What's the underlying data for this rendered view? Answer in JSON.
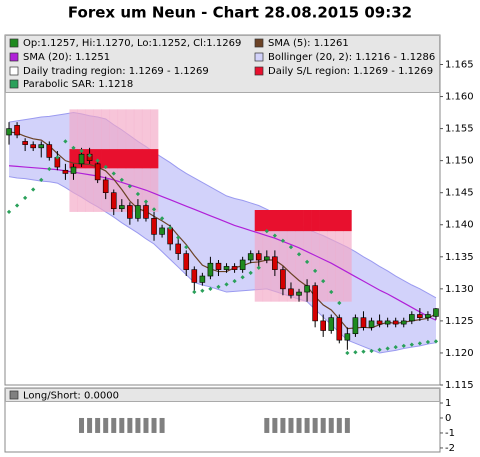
{
  "chart_data": [
    {
      "type": "candlestick",
      "title": "Forex um Neun - Chart 28.08.2015 09:32",
      "ylim": [
        1.115,
        1.1696
      ],
      "yticks": [
        1.115,
        {
          "value": 1.12,
          "label": "1.120"
        },
        1.125,
        {
          "value": 1.13,
          "label": "1.130"
        },
        1.135,
        {
          "value": 1.14,
          "label": "1.140"
        },
        1.145,
        {
          "value": 1.15,
          "label": "1.150"
        },
        1.155,
        {
          "value": 1.16,
          "label": "1.160"
        },
        1.165
      ],
      "candles": {
        "name": "Op:1.1257, Hi:1.1270, Lo:1.1252, Cl:1.1269",
        "color": "#1f8a1f",
        "down_color": "#d40000",
        "open": [
          1.154,
          1.1555,
          1.153,
          1.1525,
          1.152,
          1.1525,
          1.1505,
          1.1485,
          1.148,
          1.1495,
          1.151,
          1.1495,
          1.147,
          1.145,
          1.1425,
          1.143,
          1.141,
          1.143,
          1.141,
          1.1385,
          1.1395,
          1.137,
          1.1355,
          1.133,
          1.131,
          1.132,
          1.134,
          1.133,
          1.1335,
          1.133,
          1.1345,
          1.1355,
          1.1345,
          1.135,
          1.133,
          1.13,
          1.129,
          1.1295,
          1.1305,
          1.125,
          1.1235,
          1.1255,
          1.122,
          1.123,
          1.1255,
          1.124,
          1.125,
          1.1245,
          1.125,
          1.1245,
          1.125,
          1.126,
          1.1255,
          1.1257
        ],
        "high": [
          1.156,
          1.156,
          1.1535,
          1.153,
          1.153,
          1.153,
          1.1515,
          1.1495,
          1.1495,
          1.152,
          1.152,
          1.15,
          1.1475,
          1.1455,
          1.144,
          1.1435,
          1.144,
          1.1435,
          1.142,
          1.14,
          1.14,
          1.138,
          1.136,
          1.1335,
          1.1325,
          1.135,
          1.1345,
          1.134,
          1.134,
          1.135,
          1.136,
          1.136,
          1.136,
          1.136,
          1.1335,
          1.131,
          1.13,
          1.1315,
          1.131,
          1.126,
          1.126,
          1.126,
          1.124,
          1.126,
          1.1265,
          1.1255,
          1.126,
          1.1255,
          1.1255,
          1.1255,
          1.1265,
          1.127,
          1.1265,
          1.127
        ],
        "low": [
          1.1525,
          1.1535,
          1.1515,
          1.1515,
          1.1505,
          1.15,
          1.1485,
          1.147,
          1.147,
          1.149,
          1.1495,
          1.1465,
          1.144,
          1.1415,
          1.142,
          1.14,
          1.1405,
          1.1405,
          1.1375,
          1.138,
          1.136,
          1.1345,
          1.132,
          1.1295,
          1.1305,
          1.1315,
          1.132,
          1.1325,
          1.1325,
          1.1325,
          1.134,
          1.1335,
          1.134,
          1.132,
          1.129,
          1.1285,
          1.128,
          1.128,
          1.124,
          1.1225,
          1.123,
          1.1215,
          1.1205,
          1.1225,
          1.1235,
          1.1235,
          1.124,
          1.124,
          1.124,
          1.124,
          1.1245,
          1.125,
          1.125,
          1.1252
        ],
        "close": [
          1.155,
          1.154,
          1.1525,
          1.152,
          1.1525,
          1.1505,
          1.149,
          1.148,
          1.149,
          1.151,
          1.15,
          1.147,
          1.145,
          1.1425,
          1.143,
          1.141,
          1.143,
          1.141,
          1.1385,
          1.1395,
          1.137,
          1.1355,
          1.133,
          1.131,
          1.132,
          1.134,
          1.133,
          1.1335,
          1.133,
          1.1345,
          1.1355,
          1.1345,
          1.135,
          1.133,
          1.13,
          1.129,
          1.1295,
          1.1305,
          1.125,
          1.1235,
          1.1255,
          1.122,
          1.123,
          1.1255,
          1.124,
          1.125,
          1.1245,
          1.125,
          1.1245,
          1.125,
          1.126,
          1.1255,
          1.126,
          1.1269
        ]
      },
      "sma5": {
        "name": "SMA (5): 1.1261",
        "color": "#6b4226",
        "values": [
          1.1545,
          1.1543,
          1.1538,
          1.1534,
          1.1532,
          1.1523,
          1.1511,
          1.15,
          1.1496,
          1.1495,
          1.1494,
          1.149,
          1.1484,
          1.1471,
          1.1455,
          1.1437,
          1.1425,
          1.1421,
          1.1413,
          1.1406,
          1.1398,
          1.1383,
          1.1369,
          1.1352,
          1.1337,
          1.1331,
          1.1327,
          1.1327,
          1.1333,
          1.1336,
          1.1341,
          1.1342,
          1.1345,
          1.1345,
          1.1336,
          1.1324,
          1.1313,
          1.1304,
          1.1288,
          1.1275,
          1.1267,
          1.1253,
          1.1238,
          1.1239,
          1.124,
          1.1239,
          1.1244,
          1.1248,
          1.1246,
          1.1248,
          1.125,
          1.1252,
          1.1254,
          1.1261
        ]
      },
      "sma20": {
        "name": "SMA (20): 1.1251",
        "color": "#b020d8",
        "values": [
          1.1492,
          1.1491,
          1.149,
          1.1489,
          1.1488,
          1.1487,
          1.1486,
          1.1484,
          1.1482,
          1.148,
          1.1478,
          1.1476,
          1.1473,
          1.147,
          1.1466,
          1.1462,
          1.1458,
          1.1454,
          1.1449,
          1.1444,
          1.1439,
          1.1434,
          1.1429,
          1.1424,
          1.1419,
          1.1414,
          1.1409,
          1.1404,
          1.1399,
          1.1395,
          1.1391,
          1.1387,
          1.1383,
          1.1379,
          1.1374,
          1.1369,
          1.1364,
          1.1358,
          1.1352,
          1.1346,
          1.134,
          1.1333,
          1.1326,
          1.1319,
          1.1312,
          1.1305,
          1.1298,
          1.1292,
          1.1285,
          1.1278,
          1.1271,
          1.1264,
          1.1257,
          1.1251
        ]
      },
      "bollinger": {
        "name": "Bollinger (20, 2): 1.1216 - 1.1286",
        "color": "#9a9af0",
        "fill": "#d2d2fa",
        "upper": [
          1.156,
          1.1562,
          1.1564,
          1.1566,
          1.1568,
          1.1569,
          1.1571,
          1.1573,
          1.1575,
          1.1573,
          1.157,
          1.1568,
          1.1565,
          1.1556,
          1.1548,
          1.1539,
          1.153,
          1.1522,
          1.1513,
          1.1505,
          1.1497,
          1.1488,
          1.148,
          1.1473,
          1.1466,
          1.1459,
          1.1452,
          1.1445,
          1.1441,
          1.1438,
          1.1434,
          1.143,
          1.1424,
          1.1418,
          1.1412,
          1.1406,
          1.14,
          1.1394,
          1.1388,
          1.1383,
          1.1377,
          1.1371,
          1.1365,
          1.1358,
          1.135,
          1.1343,
          1.1335,
          1.1328,
          1.132,
          1.1313,
          1.1306,
          1.13,
          1.1293,
          1.1286
        ],
        "lower": [
          1.1475,
          1.1473,
          1.1472,
          1.147,
          1.1468,
          1.1467,
          1.1465,
          1.1458,
          1.145,
          1.1443,
          1.1435,
          1.1428,
          1.142,
          1.1412,
          1.1403,
          1.1395,
          1.1387,
          1.1378,
          1.137,
          1.1358,
          1.1346,
          1.1334,
          1.1322,
          1.131,
          1.1306,
          1.1303,
          1.1299,
          1.1295,
          1.1296,
          1.1297,
          1.1298,
          1.1299,
          1.13,
          1.1296,
          1.1292,
          1.1288,
          1.1284,
          1.128,
          1.1268,
          1.1256,
          1.1244,
          1.1232,
          1.122,
          1.1215,
          1.121,
          1.1205,
          1.12,
          1.1202,
          1.1204,
          1.1207,
          1.1209,
          1.1211,
          1.1214,
          1.1216
        ]
      },
      "trading_region": {
        "name": "Daily trading region: 1.1269 - 1.1269",
        "color": "#f2a6c4",
        "high": [
          null,
          null,
          null,
          null,
          null,
          null,
          null,
          null,
          1.158,
          1.158,
          1.158,
          1.158,
          1.158,
          1.158,
          1.158,
          1.158,
          1.158,
          1.158,
          1.158,
          null,
          null,
          null,
          null,
          null,
          null,
          null,
          null,
          null,
          null,
          null,
          null,
          1.139,
          1.139,
          1.139,
          1.139,
          1.139,
          1.139,
          1.139,
          1.139,
          1.139,
          1.139,
          1.139,
          1.139,
          null,
          null,
          null,
          null,
          null,
          null,
          null,
          null,
          null,
          null,
          null
        ],
        "low": [
          null,
          null,
          null,
          null,
          null,
          null,
          null,
          null,
          1.142,
          1.142,
          1.142,
          1.142,
          1.142,
          1.142,
          1.142,
          1.142,
          1.142,
          1.142,
          1.142,
          null,
          null,
          null,
          null,
          null,
          null,
          null,
          null,
          null,
          null,
          null,
          null,
          1.128,
          1.128,
          1.128,
          1.128,
          1.128,
          1.128,
          1.128,
          1.128,
          1.128,
          1.128,
          1.128,
          1.128,
          null,
          null,
          null,
          null,
          null,
          null,
          null,
          null,
          null,
          null,
          null
        ]
      },
      "sl_region": {
        "name": "Daily S/L region: 1.1269 - 1.1269",
        "color": "#e8102e",
        "high": [
          null,
          null,
          null,
          null,
          null,
          null,
          null,
          null,
          1.1518,
          1.1518,
          1.1518,
          1.1518,
          1.1518,
          1.1518,
          1.1518,
          1.1518,
          1.1518,
          1.1518,
          1.1518,
          null,
          null,
          null,
          null,
          null,
          null,
          null,
          null,
          null,
          null,
          null,
          null,
          1.1423,
          1.1423,
          1.1423,
          1.1423,
          1.1423,
          1.1423,
          1.1423,
          1.1423,
          1.1423,
          1.1423,
          1.1423,
          1.1423,
          null,
          null,
          null,
          null,
          null,
          null,
          null,
          null,
          null,
          null,
          null
        ],
        "low": [
          null,
          null,
          null,
          null,
          null,
          null,
          null,
          null,
          1.1488,
          1.1488,
          1.1488,
          1.1488,
          1.1488,
          1.1488,
          1.1488,
          1.1488,
          1.1488,
          1.1488,
          1.1488,
          null,
          null,
          null,
          null,
          null,
          null,
          null,
          null,
          null,
          null,
          null,
          null,
          1.139,
          1.139,
          1.139,
          1.139,
          1.139,
          1.139,
          1.139,
          1.139,
          1.139,
          1.139,
          1.139,
          1.139,
          null,
          null,
          null,
          null,
          null,
          null,
          null,
          null,
          null,
          null,
          null
        ]
      },
      "sar": {
        "name": "Parabolic SAR: 1.1218",
        "color": "#2aa05a",
        "values": [
          1.142,
          1.143,
          1.1442,
          1.1455,
          1.147,
          1.1487,
          1.1505,
          1.153,
          1.152,
          1.1515,
          1.1508,
          1.15,
          1.149,
          1.148,
          1.147,
          1.146,
          1.1448,
          1.1436,
          1.1424,
          1.141,
          1.1395,
          1.138,
          1.1365,
          1.1295,
          1.1297,
          1.13,
          1.1303,
          1.1307,
          1.1312,
          1.1318,
          1.1325,
          1.1333,
          1.139,
          1.1383,
          1.1375,
          1.1365,
          1.1354,
          1.1342,
          1.1328,
          1.1312,
          1.1295,
          1.1278,
          1.12,
          1.1201,
          1.1202,
          1.1203,
          1.1205,
          1.1207,
          1.1209,
          1.1211,
          1.1213,
          1.1215,
          1.1217,
          1.1218
        ]
      }
    },
    {
      "type": "bar",
      "name": "Long/Short: 0.0000",
      "color": "#808080",
      "ylim": [
        -2.27,
        2
      ],
      "yticks": [
        1,
        0,
        -1,
        -2
      ],
      "values": [
        0,
        0,
        0,
        0,
        0,
        0,
        0,
        0,
        0,
        -1,
        -1,
        -1,
        -1,
        -1,
        -1,
        -1,
        -1,
        -1,
        -1,
        -1,
        0,
        0,
        0,
        0,
        0,
        0,
        0,
        0,
        0,
        0,
        0,
        0,
        -1,
        -1,
        -1,
        -1,
        -1,
        -1,
        -1,
        -1,
        -1,
        -1,
        -1,
        0,
        0,
        0,
        0,
        0,
        0,
        0,
        0,
        0,
        0,
        0
      ]
    }
  ]
}
